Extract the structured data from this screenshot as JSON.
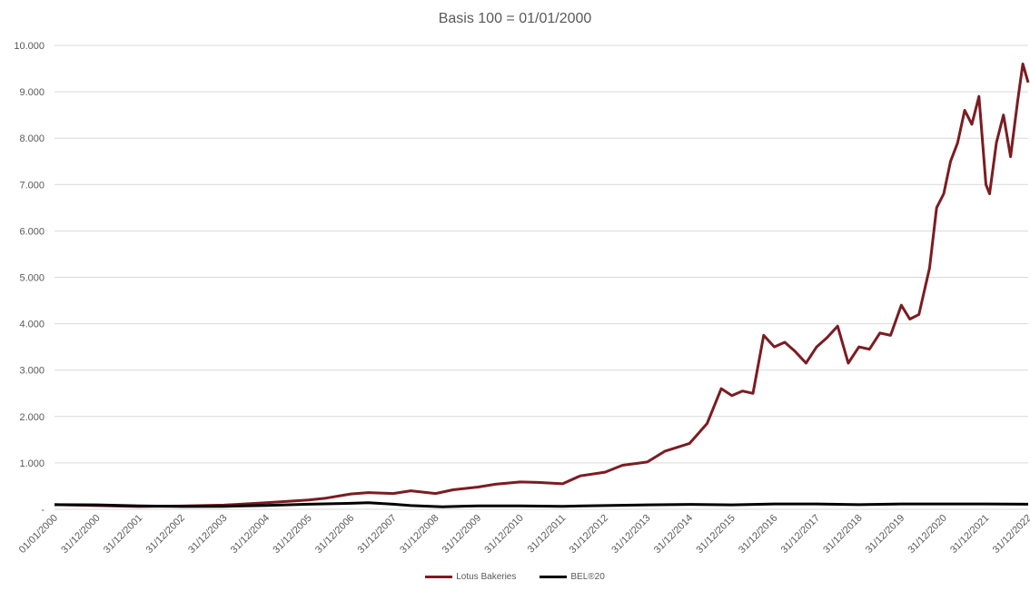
{
  "chart_data": {
    "type": "line",
    "title": "Basis 100 = 01/01/2000",
    "xlabel": "",
    "ylabel": "",
    "ylim": [
      0,
      10000
    ],
    "y_ticks": [
      "-",
      "1.000",
      "2.000",
      "3.000",
      "4.000",
      "5.000",
      "6.000",
      "7.000",
      "8.000",
      "9.000",
      "10.000"
    ],
    "x_ticks": [
      "01/01/2000",
      "31/12/2000",
      "31/12/2001",
      "31/12/2002",
      "31/12/2003",
      "31/12/2004",
      "31/12/2005",
      "31/12/2006",
      "31/12/2007",
      "31/12/2008",
      "31/12/2009",
      "31/12/2010",
      "31/12/2011",
      "31/12/2012",
      "31/12/2013",
      "31/12/2014",
      "31/12/2015",
      "31/12/2016",
      "31/12/2017",
      "31/12/2018",
      "31/12/2019",
      "31/12/2020",
      "31/12/2021",
      "31/12/2022"
    ],
    "grid": true,
    "legend_position": "bottom",
    "series": [
      {
        "name": "Lotus Bakeries",
        "color": "#7b1c22",
        "x": [
          "2000-01-01",
          "2001-01-01",
          "2002-01-01",
          "2003-01-01",
          "2004-01-01",
          "2005-01-01",
          "2006-01-01",
          "2006-06-01",
          "2007-01-01",
          "2007-06-01",
          "2008-01-01",
          "2008-06-01",
          "2009-01-01",
          "2009-06-01",
          "2010-01-01",
          "2010-06-01",
          "2011-01-01",
          "2011-06-01",
          "2012-01-01",
          "2012-06-01",
          "2013-01-01",
          "2013-06-01",
          "2014-01-01",
          "2014-06-01",
          "2015-01-01",
          "2015-06-01",
          "2015-10-01",
          "2016-01-01",
          "2016-04-01",
          "2016-07-01",
          "2016-10-01",
          "2017-01-01",
          "2017-04-01",
          "2017-07-01",
          "2017-10-01",
          "2018-01-01",
          "2018-04-01",
          "2018-07-01",
          "2018-10-01",
          "2019-01-01",
          "2019-04-01",
          "2019-07-01",
          "2019-10-01",
          "2020-01-01",
          "2020-03-15",
          "2020-06-01",
          "2020-09-01",
          "2020-11-01",
          "2021-01-01",
          "2021-03-01",
          "2021-05-01",
          "2021-07-01",
          "2021-09-01",
          "2021-11-01",
          "2022-01-01",
          "2022-02-01",
          "2022-04-01",
          "2022-06-01",
          "2022-08-01",
          "2022-10-01",
          "2022-11-15",
          "2022-12-31"
        ],
        "values": [
          100,
          80,
          60,
          70,
          90,
          140,
          200,
          240,
          330,
          360,
          340,
          400,
          340,
          420,
          480,
          540,
          590,
          580,
          550,
          720,
          800,
          950,
          1020,
          1250,
          1420,
          1850,
          2600,
          2450,
          2550,
          2500,
          3750,
          3500,
          3600,
          3400,
          3150,
          3500,
          3700,
          3950,
          3150,
          3500,
          3450,
          3800,
          3750,
          4400,
          4100,
          4200,
          5200,
          6500,
          6800,
          7500,
          7900,
          8600,
          8300,
          8900,
          7000,
          6800,
          7900,
          8500,
          7600,
          8800,
          9600,
          9200
        ]
      },
      {
        "name": "BEL®20",
        "color": "#000000",
        "x": [
          "2000-01-01",
          "2001-01-01",
          "2002-01-01",
          "2003-01-01",
          "2004-01-01",
          "2005-01-01",
          "2006-01-01",
          "2007-01-01",
          "2007-06-01",
          "2008-01-01",
          "2008-06-01",
          "2009-03-01",
          "2010-01-01",
          "2011-01-01",
          "2012-01-01",
          "2013-01-01",
          "2014-01-01",
          "2015-01-01",
          "2016-01-01",
          "2017-01-01",
          "2018-01-01",
          "2019-01-01",
          "2020-01-01",
          "2021-01-01",
          "2022-01-01",
          "2022-12-31"
        ],
        "values": [
          100,
          95,
          75,
          60,
          65,
          85,
          110,
          130,
          140,
          110,
          80,
          55,
          75,
          75,
          65,
          80,
          95,
          105,
          95,
          115,
          115,
          100,
          115,
          115,
          115,
          110
        ]
      }
    ]
  }
}
